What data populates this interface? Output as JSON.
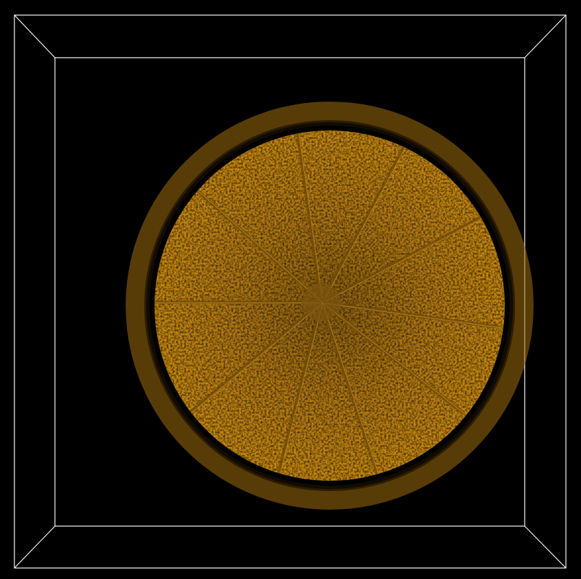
{
  "viewer": {
    "background_color": "#000000",
    "bounding_box_color": "#ffffff",
    "volume_color": "#c8860f",
    "volume_dark_color": "#6e4a0a",
    "volume_highlight_color": "#e8a624",
    "render_mode": "volume-rendering",
    "projection": "perspective",
    "view_direction": "axial",
    "subject": "orange-cross-section",
    "segment_count": 10
  }
}
